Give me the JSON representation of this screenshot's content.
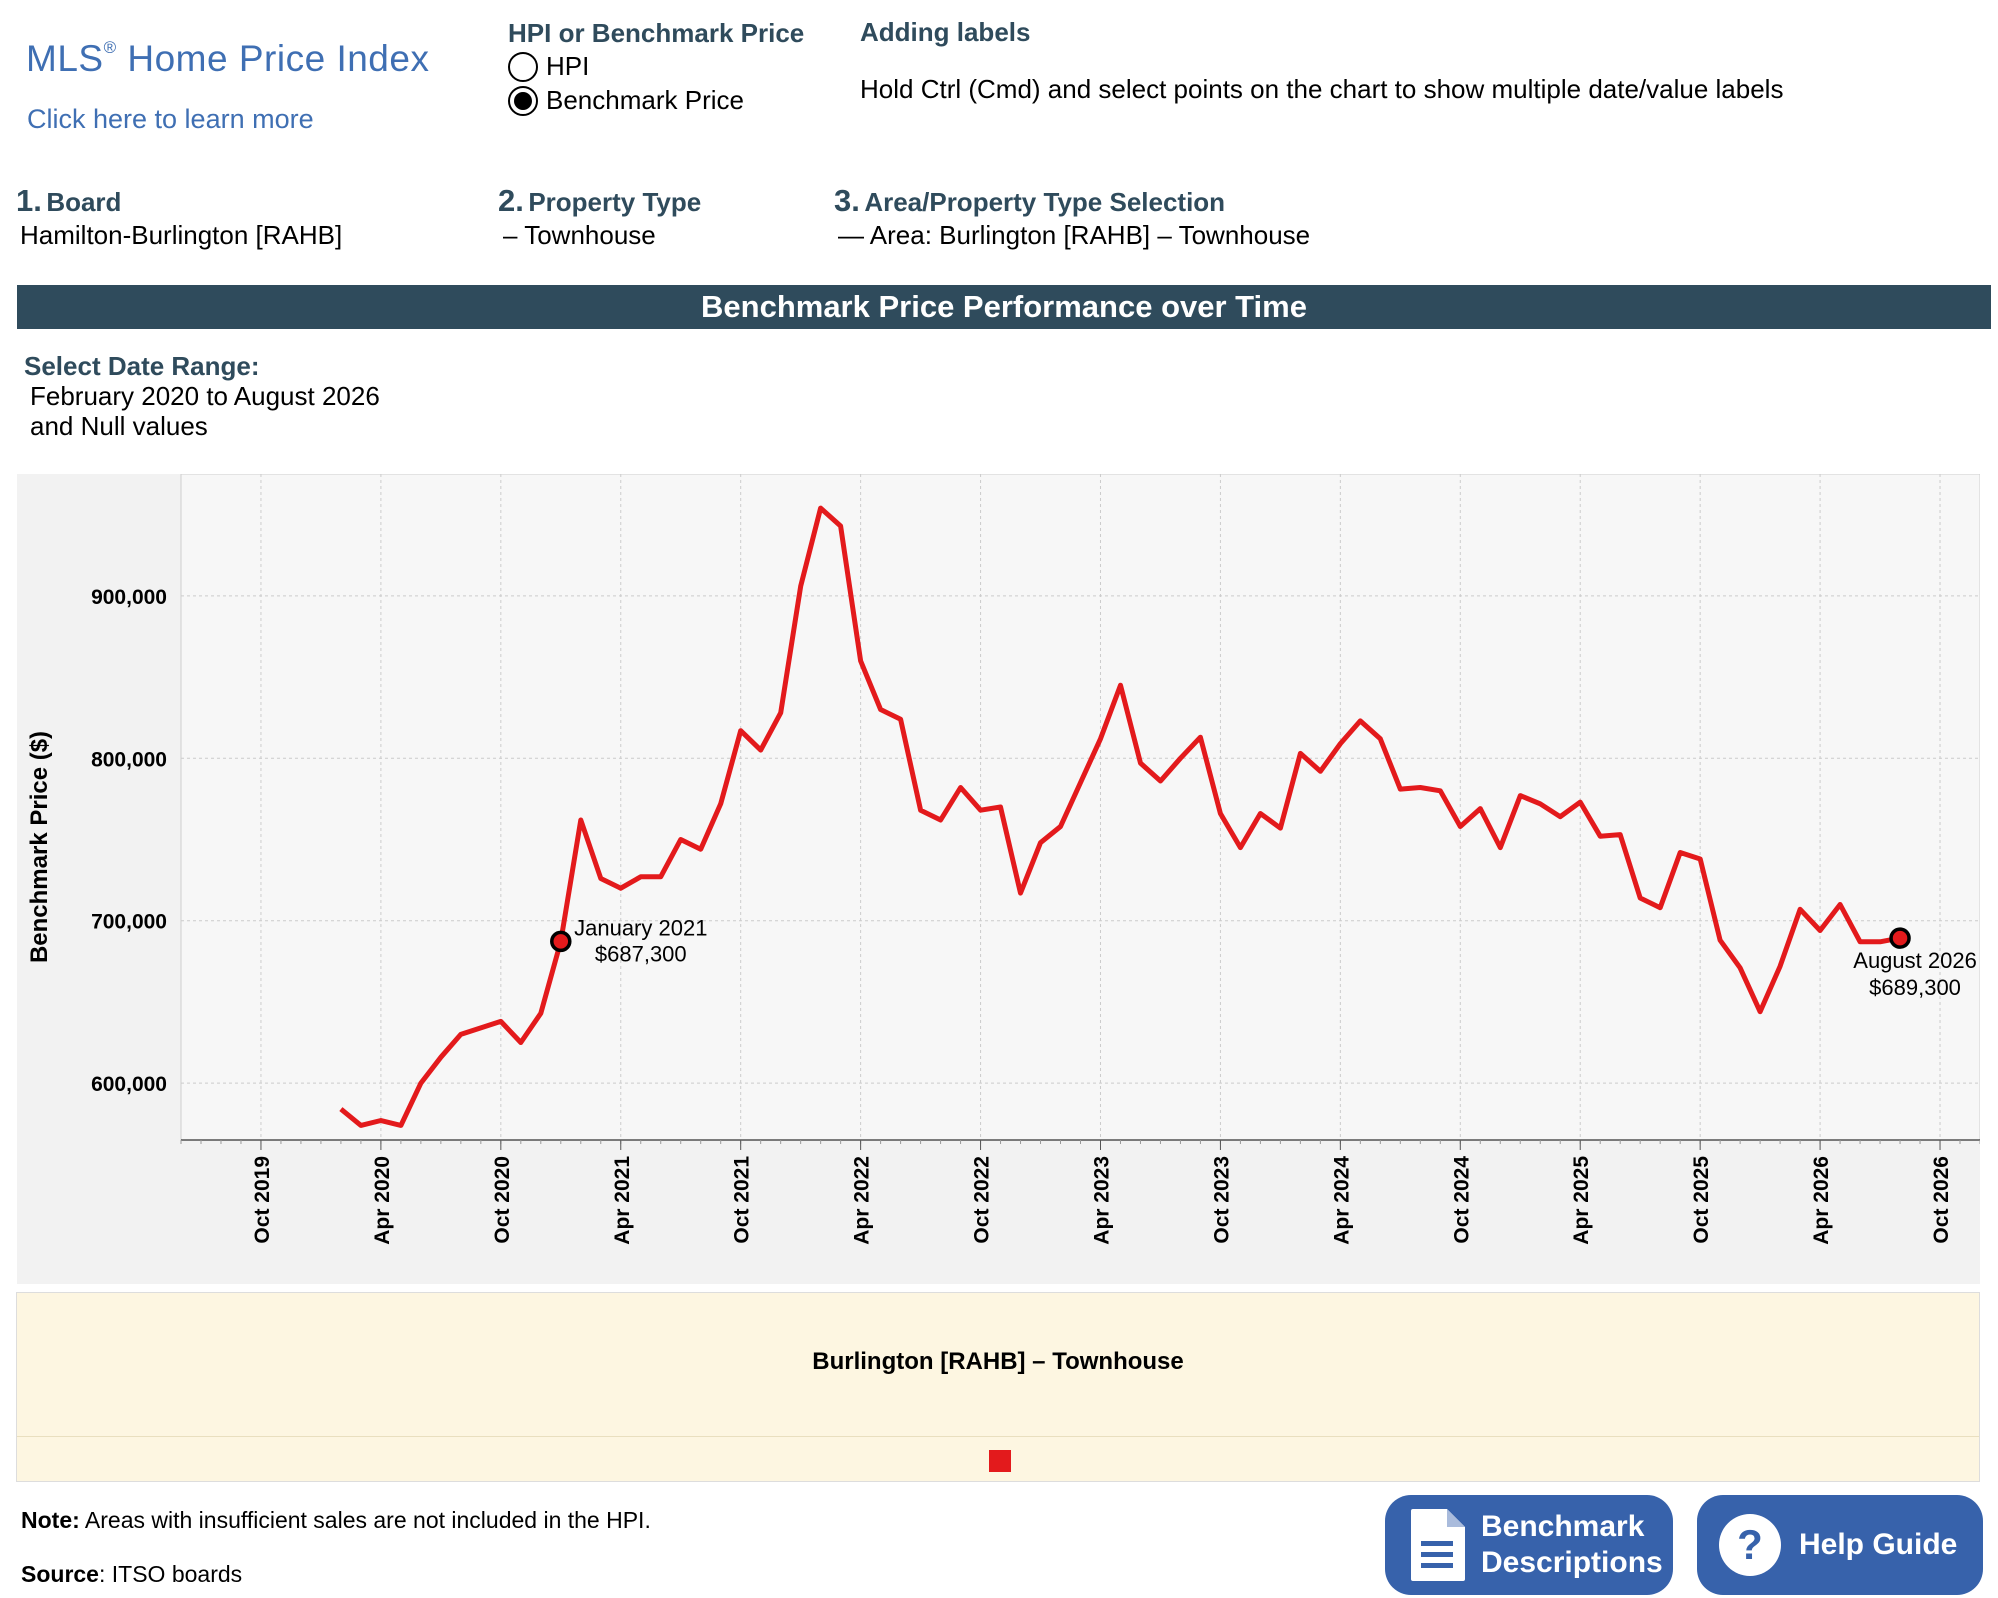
{
  "header": {
    "logo_main": "MLS",
    "logo_reg": "®",
    "logo_rest": " Home Price Index",
    "learn_more": "Click here to learn more",
    "hpi_toggle": {
      "title": "HPI or Benchmark Price",
      "options": [
        {
          "label": "HPI",
          "selected": false
        },
        {
          "label": "Benchmark Price",
          "selected": true
        }
      ]
    },
    "labels_help": {
      "title": "Adding labels",
      "text": "Hold Ctrl (Cmd) and select points on the chart to show multiple date/value labels"
    }
  },
  "selectors": {
    "board": {
      "num": "1.",
      "title": "Board",
      "value": "Hamilton-Burlington [RAHB]"
    },
    "property_type": {
      "num": "2.",
      "title": "Property Type",
      "value": "– Townhouse"
    },
    "area": {
      "num": "3.",
      "title": "Area/Property Type Selection",
      "value": "— Area: Burlington [RAHB] – Townhouse"
    }
  },
  "section_title": "Benchmark Price Performance over Time",
  "date_range": {
    "title": "Select Date Range:",
    "line1": "February 2020 to August 2026",
    "line2": "and Null values"
  },
  "chart_data": {
    "type": "line",
    "ylabel": "Benchmark Price ($)",
    "ylim": [
      565000,
      975000
    ],
    "xlim": [
      "2019-06",
      "2026-12"
    ],
    "y_ticks": [
      600000,
      700000,
      800000,
      900000
    ],
    "y_tick_labels": [
      "600,000",
      "700,000",
      "800,000",
      "900,000"
    ],
    "x_ticks": [
      "2019-10",
      "2020-04",
      "2020-10",
      "2021-04",
      "2021-10",
      "2022-04",
      "2022-10",
      "2023-04",
      "2023-10",
      "2024-04",
      "2024-10",
      "2025-04",
      "2025-10",
      "2026-04",
      "2026-10"
    ],
    "x_tick_labels": [
      "Oct 2019",
      "Apr 2020",
      "Oct 2020",
      "Apr 2021",
      "Oct 2021",
      "Apr 2022",
      "Oct 2022",
      "Apr 2023",
      "Oct 2023",
      "Apr 2024",
      "Oct 2024",
      "Apr 2025",
      "Oct 2025",
      "Apr 2026",
      "Oct 2026"
    ],
    "grid": true,
    "line_color": "#e31a1c",
    "series": [
      {
        "name": "Burlington [RAHB] – Townhouse",
        "x": [
          "2020-02",
          "2020-03",
          "2020-04",
          "2020-05",
          "2020-06",
          "2020-07",
          "2020-08",
          "2020-09",
          "2020-10",
          "2020-11",
          "2020-12",
          "2021-01",
          "2021-02",
          "2021-03",
          "2021-04",
          "2021-05",
          "2021-06",
          "2021-07",
          "2021-08",
          "2021-09",
          "2021-10",
          "2021-11",
          "2021-12",
          "2022-01",
          "2022-02",
          "2022-03",
          "2022-04",
          "2022-05",
          "2022-06",
          "2022-07",
          "2022-08",
          "2022-09",
          "2022-10",
          "2022-11",
          "2022-12",
          "2023-01",
          "2023-02",
          "2023-03",
          "2023-04",
          "2023-05",
          "2023-06",
          "2023-07",
          "2023-08",
          "2023-09",
          "2023-10",
          "2023-11",
          "2023-12",
          "2024-01",
          "2024-02",
          "2024-03",
          "2024-04",
          "2024-05",
          "2024-06",
          "2024-07",
          "2024-08",
          "2024-09",
          "2024-10",
          "2024-11",
          "2024-12",
          "2025-01",
          "2025-02",
          "2025-03",
          "2025-04",
          "2025-05",
          "2025-06",
          "2025-07",
          "2025-08",
          "2025-09",
          "2025-10",
          "2025-11",
          "2025-12",
          "2026-01",
          "2026-02",
          "2026-03",
          "2026-04",
          "2026-05",
          "2026-06",
          "2026-07",
          "2026-08"
        ],
        "values": [
          584000,
          574000,
          577000,
          574000,
          600000,
          616000,
          630000,
          634000,
          638000,
          625000,
          643000,
          687300,
          762000,
          726000,
          720000,
          727000,
          727000,
          750000,
          744000,
          772000,
          817000,
          805000,
          828000,
          906000,
          954000,
          943000,
          860000,
          830000,
          824000,
          768000,
          762000,
          782000,
          768000,
          770000,
          717000,
          748000,
          758000,
          785000,
          812000,
          845000,
          797000,
          786000,
          800000,
          813000,
          766000,
          745000,
          766000,
          757000,
          803000,
          792000,
          809000,
          823000,
          812000,
          781000,
          782000,
          780000,
          758000,
          769000,
          745000,
          777000,
          772000,
          764000,
          773000,
          752000,
          753000,
          714000,
          708000,
          742000,
          738000,
          688000,
          671000,
          644000,
          672000,
          707000,
          694000,
          710000,
          687000,
          687000,
          689300
        ]
      }
    ],
    "annotations": [
      {
        "x": "2021-01",
        "y": 687300,
        "date_label": "January 2021",
        "value_label": "$687,300",
        "side": "right-top"
      },
      {
        "x": "2026-08",
        "y": 689300,
        "date_label": "August 2026",
        "value_label": "$689,300",
        "side": "below"
      }
    ]
  },
  "legend": {
    "title": "Burlington [RAHB] – Townhouse",
    "swatch_color": "#e31a1c"
  },
  "footer": {
    "note_label": "Note:",
    "note_text": " Areas with insufficient sales are not included in the HPI.",
    "source_label": "Source",
    "source_text": ": ITSO boards",
    "benchmark_btn": {
      "line1": "Benchmark",
      "line2": "Descriptions"
    },
    "help_btn": "Help Guide"
  }
}
